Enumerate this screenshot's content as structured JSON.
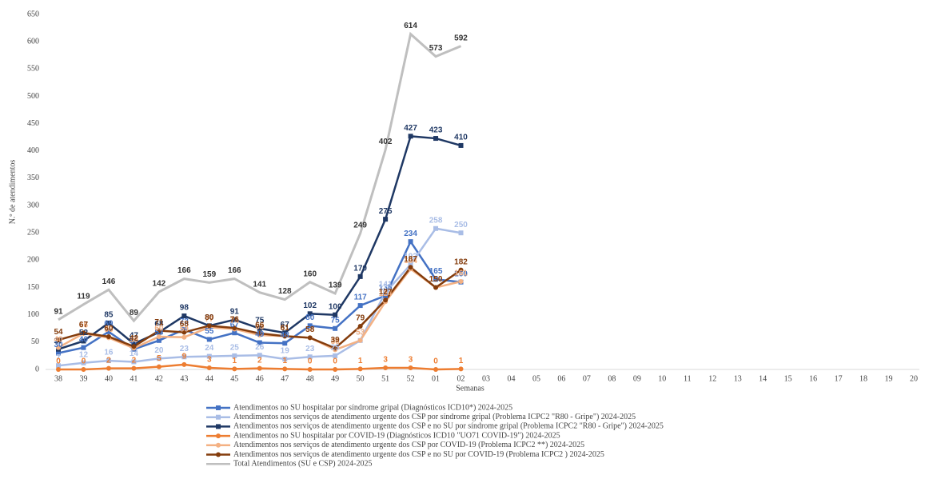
{
  "chart_data": {
    "type": "line",
    "y_label": "N.º de atendimentos",
    "x_label": "Semanas",
    "categories": [
      "38",
      "39",
      "40",
      "41",
      "42",
      "43",
      "44",
      "45",
      "46",
      "47",
      "48",
      "49",
      "50",
      "51",
      "52",
      "01",
      "02",
      "03",
      "04",
      "05",
      "06",
      "07",
      "08",
      "09",
      "10",
      "11",
      "12",
      "13",
      "14",
      "15",
      "16",
      "17",
      "18",
      "19",
      "20"
    ],
    "ylim": [
      0,
      650
    ],
    "yticks": [
      0,
      50,
      100,
      150,
      200,
      250,
      300,
      350,
      400,
      450,
      500,
      550,
      600,
      650
    ],
    "series": [
      {
        "name": "Atendimentos no SU hospitalar por síndrome gripal (Diagnósticos ICD10*)  2024-2025",
        "color": "#4472c4",
        "marker": "square",
        "values": [
          30,
          40,
          69,
          37,
          53,
          73,
          55,
          67,
          49,
          48,
          80,
          75,
          117,
          135,
          234,
          165,
          160,
          null,
          null,
          null,
          null,
          null,
          null,
          null,
          null,
          null,
          null,
          null,
          null,
          null,
          null,
          null,
          null,
          null,
          null
        ]
      },
      {
        "name": "Atendimentos nos serviços de atendimento urgente dos CSP por síndrome gripal (Problema ICPC2  \"R80 - Gripe\")  2024-2025",
        "color": "#a9bde6",
        "marker": "square",
        "values": [
          7,
          12,
          16,
          14,
          20,
          23,
          24,
          25,
          26,
          19,
          23,
          25,
          53,
          141,
          192,
          258,
          250,
          null,
          null,
          null,
          null,
          null,
          null,
          null,
          null,
          null,
          null,
          null,
          null,
          null,
          null,
          null,
          null,
          null,
          null
        ]
      },
      {
        "name": "Atendimentos nos serviços de atendimento urgente dos CSP e no SU por síndrome gripal (Problema ICPC2  \"R80 - Gripe\")  2024-2025",
        "color": "#1f3864",
        "marker": "square",
        "values": [
          37,
          52,
          85,
          47,
          68,
          98,
          80,
          91,
          75,
          67,
          102,
          100,
          170,
          275,
          427,
          423,
          410,
          null,
          null,
          null,
          null,
          null,
          null,
          null,
          null,
          null,
          null,
          null,
          null,
          null,
          null,
          null,
          null,
          null,
          null
        ]
      },
      {
        "name": "Atendimentos no SU hospitalar por COVID-19 (Diagnósticos ICD10 \"UO71 COVID-19\")  2024-2025",
        "color": "#ed7d31",
        "marker": "circle",
        "values": [
          0,
          0,
          2,
          2,
          5,
          9,
          3,
          1,
          2,
          1,
          0,
          0,
          1,
          3,
          3,
          0,
          1,
          null,
          null,
          null,
          null,
          null,
          null,
          null,
          null,
          null,
          null,
          null,
          null,
          null,
          null,
          null,
          null,
          null,
          null
        ]
      },
      {
        "name": "Atendimentos nos serviços de atendimento urgente dos CSP por COVID-19 (Problema ICPC2 **)  2024-2025",
        "color": "#f4b183",
        "marker": "circle",
        "values": [
          40,
          66,
          58,
          39,
          60,
          59,
          77,
          74,
          63,
          61,
          58,
          36,
          53,
          124,
          184,
          150,
          161,
          null,
          null,
          null,
          null,
          null,
          null,
          null,
          null,
          null,
          null,
          null,
          null,
          null,
          null,
          null,
          null,
          null,
          null
        ]
      },
      {
        "name": "Atendimentos nos serviços de atendimento urgente dos CSP e no SU por COVID-19 (Problema ICPC2 )  2024-2025",
        "color": "#843c0c",
        "marker": "circle",
        "values": [
          54,
          67,
          60,
          42,
          71,
          68,
          80,
          76,
          66,
          61,
          58,
          39,
          79,
          127,
          187,
          150,
          182,
          null,
          null,
          null,
          null,
          null,
          null,
          null,
          null,
          null,
          null,
          null,
          null,
          null,
          null,
          null,
          null,
          null,
          null
        ]
      },
      {
        "name": "Total Atendimentos (SU e CSP) 2024-2025",
        "color": "#bfbfbf",
        "marker": "none",
        "values": [
          91,
          119,
          146,
          89,
          142,
          166,
          159,
          166,
          141,
          128,
          160,
          139,
          249,
          402,
          614,
          573,
          592,
          null,
          null,
          null,
          null,
          null,
          null,
          null,
          null,
          null,
          null,
          null,
          null,
          null,
          null,
          null,
          null,
          null,
          null
        ]
      }
    ]
  }
}
